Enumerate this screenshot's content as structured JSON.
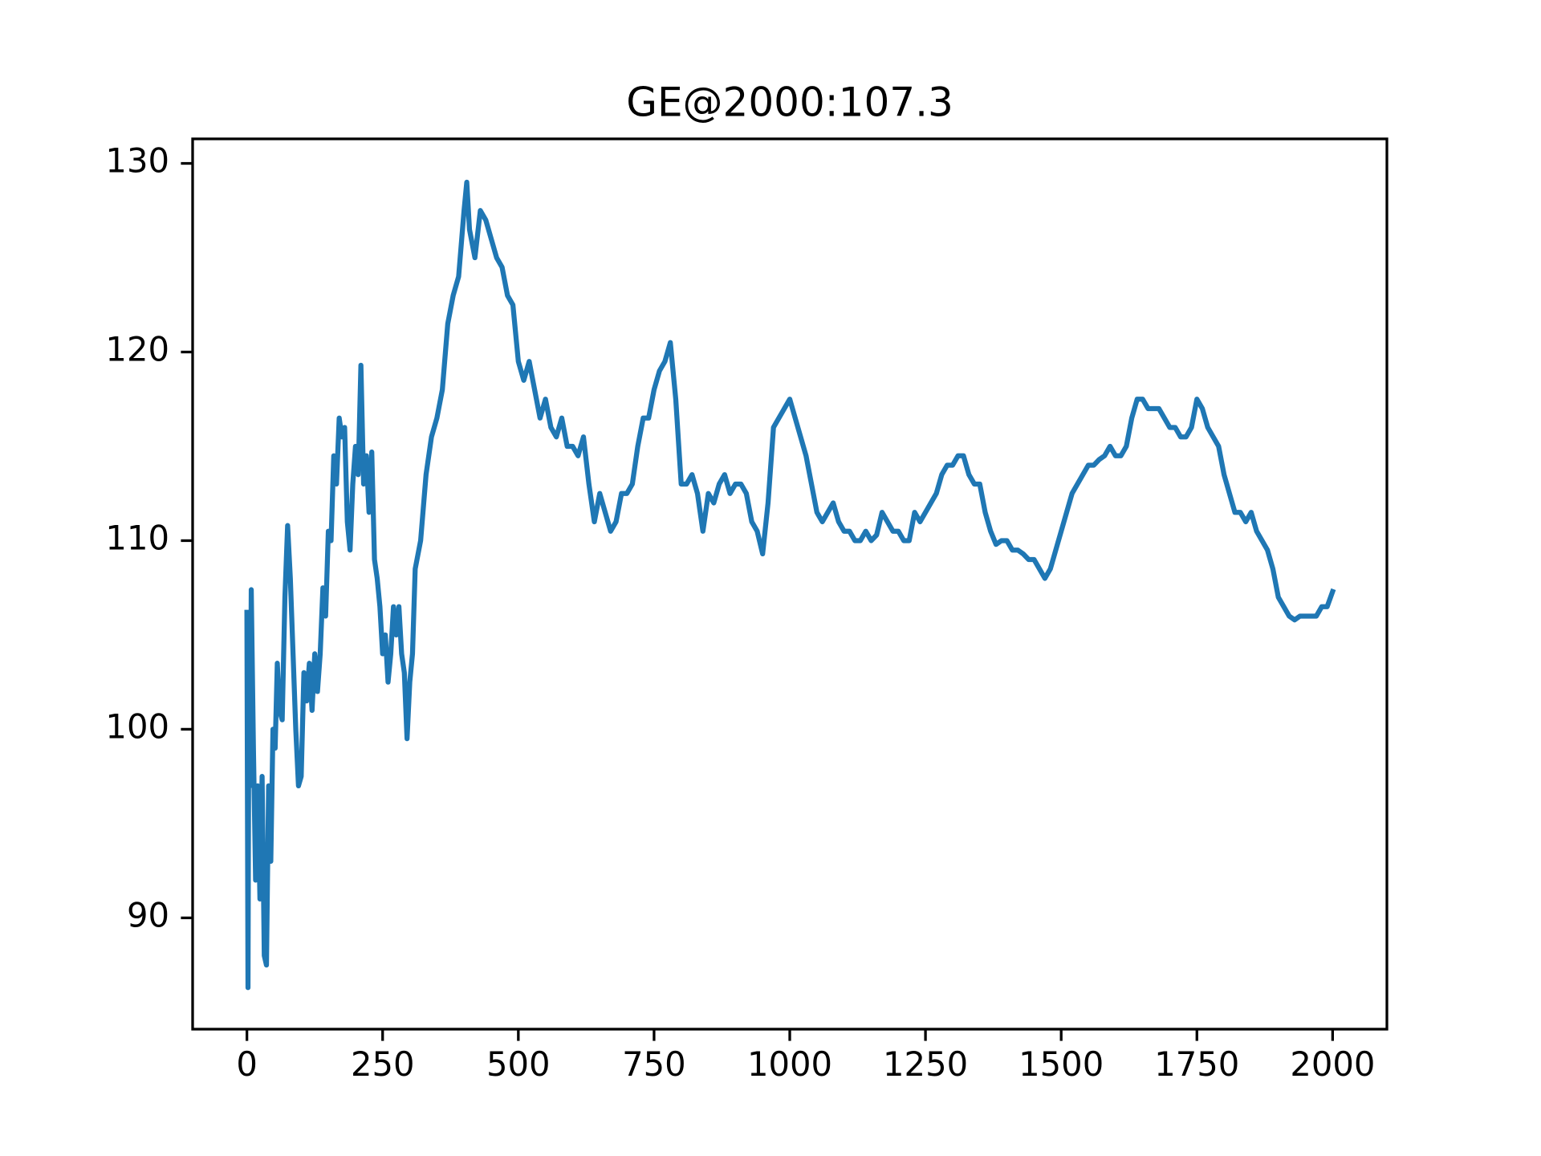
{
  "chart_data": {
    "type": "line",
    "title": "GE@2000:107.3",
    "x": [
      0,
      2,
      4,
      6,
      8,
      12,
      16,
      20,
      24,
      28,
      32,
      36,
      40,
      44,
      48,
      52,
      56,
      60,
      65,
      70,
      75,
      80,
      85,
      90,
      95,
      100,
      105,
      110,
      115,
      120,
      125,
      130,
      135,
      140,
      145,
      150,
      155,
      160,
      165,
      170,
      175,
      180,
      185,
      190,
      195,
      200,
      205,
      210,
      215,
      220,
      225,
      230,
      235,
      240,
      245,
      250,
      255,
      260,
      265,
      270,
      275,
      280,
      285,
      290,
      295,
      300,
      305,
      310,
      320,
      330,
      340,
      350,
      360,
      370,
      380,
      390,
      400,
      405,
      410,
      420,
      430,
      440,
      450,
      460,
      470,
      480,
      490,
      500,
      510,
      520,
      530,
      540,
      550,
      560,
      570,
      580,
      590,
      600,
      610,
      620,
      630,
      640,
      650,
      660,
      670,
      680,
      690,
      700,
      710,
      720,
      730,
      740,
      750,
      760,
      770,
      780,
      790,
      800,
      810,
      820,
      830,
      840,
      850,
      860,
      870,
      880,
      890,
      900,
      910,
      920,
      930,
      940,
      950,
      960,
      970,
      980,
      990,
      1000,
      1010,
      1020,
      1030,
      1040,
      1050,
      1060,
      1070,
      1080,
      1090,
      1100,
      1110,
      1120,
      1130,
      1140,
      1150,
      1160,
      1170,
      1180,
      1190,
      1200,
      1210,
      1220,
      1230,
      1240,
      1250,
      1260,
      1270,
      1280,
      1290,
      1300,
      1310,
      1320,
      1330,
      1340,
      1350,
      1360,
      1370,
      1380,
      1390,
      1400,
      1410,
      1420,
      1430,
      1440,
      1450,
      1460,
      1470,
      1480,
      1490,
      1500,
      1510,
      1520,
      1530,
      1540,
      1550,
      1560,
      1570,
      1580,
      1590,
      1600,
      1610,
      1620,
      1630,
      1640,
      1650,
      1660,
      1670,
      1680,
      1690,
      1700,
      1710,
      1720,
      1730,
      1740,
      1750,
      1760,
      1770,
      1780,
      1790,
      1800,
      1810,
      1820,
      1830,
      1840,
      1850,
      1860,
      1870,
      1880,
      1890,
      1900,
      1910,
      1920,
      1930,
      1940,
      1950,
      1960,
      1970,
      1980,
      1990,
      2000
    ],
    "values": [
      106.2,
      86.3,
      106,
      97,
      107.4,
      99,
      92,
      97,
      91,
      97.5,
      88,
      87.5,
      97,
      93,
      100,
      99,
      103.5,
      101,
      100.5,
      107,
      110.8,
      108,
      104,
      100,
      97,
      97.5,
      103,
      101.5,
      103.5,
      101,
      104,
      102,
      104,
      107.5,
      106,
      110.5,
      110,
      114.5,
      113,
      116.5,
      115.5,
      116,
      111,
      109.5,
      113,
      115,
      113.5,
      119.3,
      113,
      114.5,
      111.5,
      114.7,
      109,
      108,
      106.5,
      104,
      105,
      102.5,
      104,
      106.5,
      105,
      106.5,
      104,
      103,
      99.5,
      102.5,
      104,
      108.5,
      110,
      113.5,
      115.5,
      116.5,
      118,
      121.5,
      123,
      124,
      127.5,
      129,
      126.5,
      125,
      127.5,
      127,
      126,
      125,
      124.5,
      123,
      122.5,
      119.5,
      118.5,
      119.5,
      118,
      116.5,
      117.5,
      116,
      115.5,
      116.5,
      115,
      115,
      114.5,
      115.5,
      113,
      111,
      112.5,
      111.5,
      110.5,
      111,
      112.5,
      112.5,
      113,
      115,
      116.5,
      116.5,
      118,
      119,
      119.5,
      120.5,
      117.5,
      113,
      113,
      113.5,
      112.5,
      110.5,
      112.5,
      112,
      113,
      113.5,
      112.5,
      113,
      113,
      112.5,
      111,
      110.5,
      109.3,
      112,
      116,
      116.5,
      117,
      117.5,
      116.5,
      115.5,
      114.5,
      113,
      111.5,
      111,
      111.5,
      112,
      111,
      110.5,
      110.5,
      110,
      110,
      110.5,
      110,
      110.3,
      111.5,
      111,
      110.5,
      110.5,
      110,
      110,
      111.5,
      111,
      111.5,
      112,
      112.5,
      113.5,
      114,
      114,
      114.5,
      114.5,
      113.5,
      113,
      113,
      111.5,
      110.5,
      109.8,
      110,
      110,
      109.5,
      109.5,
      109.3,
      109,
      109,
      108.5,
      108,
      108.5,
      109.5,
      110.5,
      111.5,
      112.5,
      113,
      113.5,
      114,
      114,
      114.3,
      114.5,
      115,
      114.5,
      114.5,
      115,
      116.5,
      117.5,
      117.5,
      117,
      117,
      117,
      116.5,
      116,
      116,
      115.5,
      115.5,
      116,
      117.5,
      117,
      116,
      115.5,
      115,
      113.5,
      112.5,
      111.5,
      111.5,
      111,
      111.5,
      110.5,
      110,
      109.5,
      108.5,
      107,
      106.5,
      106,
      105.8,
      106,
      106,
      106,
      106,
      106.5,
      106.5,
      107.3
    ],
    "color": "#1f77b4",
    "xlim": [
      -100,
      2100
    ],
    "xticks": [
      0,
      250,
      500,
      750,
      1000,
      1250,
      1500,
      1750,
      2000
    ],
    "ylim": [
      84.1,
      131.3
    ],
    "yticks": [
      90,
      100,
      110,
      120,
      130
    ]
  }
}
